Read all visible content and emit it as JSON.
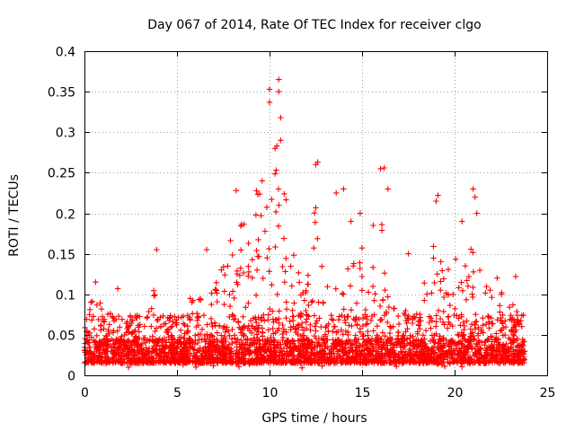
{
  "chart_data": {
    "type": "scatter",
    "title": "Day 067 of 2014, Rate Of TEC Index for receiver clgo",
    "xlabel": "GPS time / hours",
    "ylabel": "ROTI / TECUs",
    "xlim": [
      0,
      25
    ],
    "ylim": [
      0,
      0.4
    ],
    "x_ticks": [
      0,
      5,
      10,
      15,
      20,
      25
    ],
    "y_ticks": [
      0,
      0.05,
      0.1,
      0.15,
      0.2,
      0.25,
      0.3,
      0.35,
      0.4
    ],
    "y_tick_labels": [
      "0",
      "0.05",
      "0.1",
      "0.15",
      "0.2",
      "0.25",
      "0.3",
      "0.35",
      "0.4"
    ],
    "grid": true,
    "marker": "+",
    "color": "#ff0000",
    "time_range": [
      0.0,
      23.8
    ],
    "baseline": 0.015,
    "envelope": [
      [
        0.0,
        0.06
      ],
      [
        0.5,
        0.09
      ],
      [
        1.0,
        0.08
      ],
      [
        2.0,
        0.07
      ],
      [
        3.0,
        0.06
      ],
      [
        3.8,
        0.1
      ],
      [
        4.5,
        0.06
      ],
      [
        5.0,
        0.08
      ],
      [
        6.0,
        0.09
      ],
      [
        7.0,
        0.1
      ],
      [
        8.0,
        0.18
      ],
      [
        9.0,
        0.19
      ],
      [
        9.5,
        0.24
      ],
      [
        10.0,
        0.26
      ],
      [
        10.5,
        0.25
      ],
      [
        11.0,
        0.2
      ],
      [
        11.5,
        0.13
      ],
      [
        12.0,
        0.1
      ],
      [
        12.5,
        0.22
      ],
      [
        13.0,
        0.12
      ],
      [
        14.0,
        0.13
      ],
      [
        15.0,
        0.16
      ],
      [
        15.5,
        0.11
      ],
      [
        16.0,
        0.2
      ],
      [
        16.5,
        0.13
      ],
      [
        17.0,
        0.08
      ],
      [
        18.0,
        0.07
      ],
      [
        19.0,
        0.17
      ],
      [
        19.5,
        0.12
      ],
      [
        20.0,
        0.14
      ],
      [
        20.5,
        0.12
      ],
      [
        21.0,
        0.17
      ],
      [
        22.0,
        0.09
      ],
      [
        23.0,
        0.1
      ],
      [
        23.8,
        0.06
      ]
    ],
    "highlights": [
      [
        10.0,
        0.353
      ],
      [
        10.5,
        0.365
      ],
      [
        10.0,
        0.337
      ],
      [
        10.5,
        0.35
      ],
      [
        10.6,
        0.318
      ],
      [
        10.3,
        0.28
      ],
      [
        10.4,
        0.283
      ],
      [
        10.6,
        0.29
      ],
      [
        12.6,
        0.263
      ],
      [
        12.5,
        0.26
      ],
      [
        16.2,
        0.256
      ],
      [
        16.4,
        0.23
      ],
      [
        19.1,
        0.222
      ],
      [
        19.0,
        0.215
      ],
      [
        20.4,
        0.19
      ],
      [
        21.0,
        0.23
      ],
      [
        21.1,
        0.22
      ],
      [
        8.2,
        0.228
      ],
      [
        3.9,
        0.155
      ],
      [
        13.6,
        0.225
      ],
      [
        14.0,
        0.23
      ],
      [
        14.4,
        0.19
      ],
      [
        16.0,
        0.255
      ],
      [
        21.2,
        0.2
      ],
      [
        9.6,
        0.24
      ],
      [
        17.5,
        0.15
      ],
      [
        14.9,
        0.2
      ],
      [
        15.6,
        0.185
      ],
      [
        23.3,
        0.122
      ],
      [
        0.6,
        0.115
      ],
      [
        1.8,
        0.107
      ],
      [
        22.3,
        0.12
      ],
      [
        6.6,
        0.155
      ],
      [
        7.4,
        0.13
      ]
    ]
  }
}
